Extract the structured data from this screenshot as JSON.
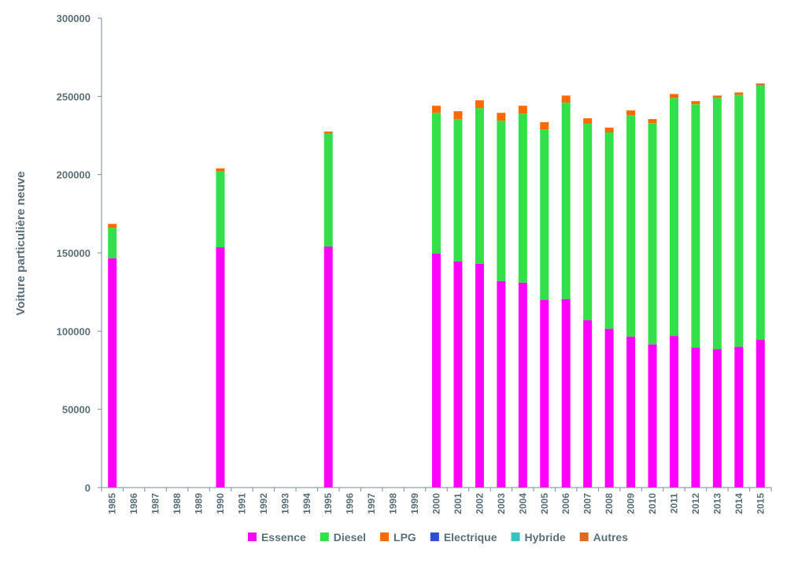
{
  "chart_data": {
    "type": "bar",
    "stacked": true,
    "ylabel": "Voiture particulière neuve",
    "xlabel": "",
    "ylim": [
      0,
      300000
    ],
    "yticks": [
      "0",
      "50000",
      "100000",
      "150000",
      "200000",
      "250000",
      "300000"
    ],
    "grid": false,
    "legend_position": "bottom",
    "categories": [
      "1985",
      "1986",
      "1987",
      "1988",
      "1989",
      "1990",
      "1991",
      "1992",
      "1993",
      "1994",
      "1995",
      "1996",
      "1997",
      "1998",
      "1999",
      "2000",
      "2001",
      "2002",
      "2003",
      "2004",
      "2005",
      "2006",
      "2007",
      "2008",
      "2009",
      "2010",
      "2011",
      "2012",
      "2013",
      "2014",
      "2015"
    ],
    "series": [
      {
        "name": "Essence",
        "color": "#ff00ff",
        "values": [
          146500,
          0,
          0,
          0,
          0,
          153500,
          0,
          0,
          0,
          0,
          154000,
          0,
          0,
          0,
          0,
          149500,
          144500,
          143000,
          132000,
          131000,
          120000,
          120500,
          107000,
          101500,
          96500,
          91500,
          97000,
          89500,
          88500,
          90000,
          94500
        ]
      },
      {
        "name": "Diesel",
        "color": "#33e04a",
        "values": [
          19500,
          0,
          0,
          0,
          0,
          48500,
          0,
          0,
          0,
          0,
          72500,
          0,
          0,
          0,
          0,
          90000,
          91000,
          99500,
          102500,
          108000,
          109000,
          125500,
          125500,
          125500,
          141500,
          141500,
          152000,
          155500,
          160500,
          161000,
          162500
        ]
      },
      {
        "name": "LPG",
        "color": "#ff6a00",
        "values": [
          2500,
          0,
          0,
          0,
          0,
          2000,
          0,
          0,
          0,
          0,
          1000,
          0,
          0,
          0,
          0,
          4500,
          5000,
          5000,
          5000,
          5000,
          4500,
          4500,
          3500,
          3000,
          3000,
          2500,
          2500,
          2000,
          1500,
          1500,
          1000
        ]
      },
      {
        "name": "Electrique",
        "color": "#2e4fd4",
        "values": [
          0,
          0,
          0,
          0,
          0,
          0,
          0,
          0,
          0,
          0,
          0,
          0,
          0,
          0,
          0,
          0,
          0,
          0,
          0,
          0,
          0,
          0,
          0,
          0,
          0,
          0,
          0,
          0,
          0,
          0,
          100
        ]
      },
      {
        "name": "Hybride",
        "color": "#3bbfbf",
        "values": [
          0,
          0,
          0,
          0,
          0,
          0,
          0,
          0,
          0,
          0,
          0,
          0,
          0,
          0,
          0,
          0,
          0,
          0,
          0,
          0,
          0,
          0,
          0,
          0,
          0,
          0,
          0,
          0,
          0,
          0,
          0
        ]
      },
      {
        "name": "Autres",
        "color": "#e06a1f",
        "values": [
          0,
          0,
          0,
          0,
          0,
          0,
          0,
          0,
          0,
          0,
          0,
          0,
          0,
          0,
          0,
          0,
          0,
          0,
          0,
          0,
          0,
          0,
          0,
          0,
          0,
          0,
          0,
          0,
          0,
          0,
          0
        ]
      }
    ]
  }
}
